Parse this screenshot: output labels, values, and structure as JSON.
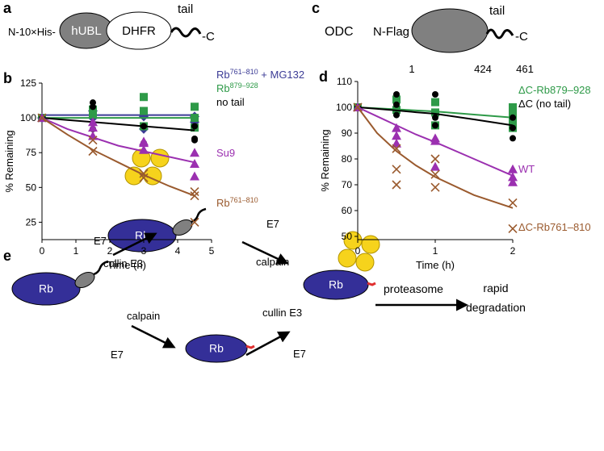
{
  "panel_a": {
    "letter": "a",
    "prefix": "N-10×His-",
    "domain1": "hUBL",
    "domain2": "DHFR",
    "tail": "tail",
    "suffix": "-C"
  },
  "panel_c": {
    "letter": "c",
    "protein": "ODC",
    "prefix": "N-Flag",
    "tail": "tail",
    "suffix": "-C",
    "positions": [
      "1",
      "424",
      "461"
    ]
  },
  "chart_data": [
    {
      "type": "scatter",
      "letter": "b",
      "xlabel": "Time (h)",
      "ylabel": "% Remaining",
      "xlim": [
        0,
        5
      ],
      "xticks": [
        0,
        1,
        2,
        3,
        4,
        5
      ],
      "ylim": [
        12.5,
        125
      ],
      "yticks": [
        25,
        50,
        75,
        100,
        125
      ],
      "fit_x": [
        0,
        0.75,
        1.5,
        2.25,
        3,
        3.75,
        4.5
      ],
      "series": [
        {
          "name": "Rb761–810 + MG132",
          "color": "#3c3c96",
          "marker": "diamond",
          "x": [
            0,
            1.5,
            1.5,
            3,
            3,
            4.5,
            4.5
          ],
          "values": [
            100,
            105,
            100,
            101,
            92,
            101,
            97
          ],
          "fit_values": [
            102,
            102,
            102,
            102,
            102,
            102,
            102
          ]
        },
        {
          "name": "Rb879–928",
          "color": "#2e9a48",
          "marker": "square",
          "x": [
            0,
            1.5,
            1.5,
            3,
            3,
            3,
            4.5,
            4.5,
            4.5
          ],
          "values": [
            100,
            106,
            103,
            115,
            105,
            94,
            108,
            100,
            93
          ],
          "fit_values": [
            100,
            100,
            100,
            100,
            100,
            100,
            100
          ]
        },
        {
          "name": "no tail",
          "color": "#000000",
          "marker": "circle",
          "x": [
            0,
            1.5,
            1.5,
            1.5,
            3,
            3,
            4.5,
            4.5,
            4.5
          ],
          "values": [
            100,
            111,
            108,
            92,
            94,
            82,
            85,
            84,
            94
          ],
          "fit_values": [
            100,
            98.5,
            97,
            95.5,
            94,
            92.5,
            91
          ]
        },
        {
          "name": "Su9",
          "color": "#9b30b0",
          "marker": "triangle",
          "x": [
            0,
            1.5,
            1.5,
            1.5,
            3,
            3,
            3,
            4.5,
            4.5,
            4.5
          ],
          "values": [
            100,
            97,
            93,
            87,
            83,
            77,
            82,
            75,
            67,
            58
          ],
          "fit_values": [
            100,
            92,
            86,
            80,
            76,
            72,
            68
          ]
        },
        {
          "name": "Rb761–810",
          "color": "#9a5a2e",
          "marker": "x",
          "x": [
            0,
            1.5,
            1.5,
            3,
            3,
            4.5,
            4.5,
            4.5
          ],
          "values": [
            100,
            84,
            76,
            60,
            57,
            47,
            44,
            25
          ],
          "fit_values": [
            100,
            88,
            77,
            68,
            59,
            51,
            44
          ]
        }
      ]
    },
    {
      "type": "scatter",
      "letter": "d",
      "xlabel": "Time (h)",
      "ylabel": "% Remaining",
      "xlim": [
        0,
        2
      ],
      "xticks": [
        0,
        1,
        2
      ],
      "ylim": [
        48.75,
        110
      ],
      "yticks": [
        50,
        60,
        70,
        80,
        90,
        100,
        110
      ],
      "fit_x": [
        0,
        0.25,
        0.5,
        0.75,
        1,
        1.5,
        2
      ],
      "series": [
        {
          "name": "ΔC-Rb879–928",
          "color": "#2e9a48",
          "marker": "square",
          "x": [
            0,
            0.5,
            0.5,
            1,
            1,
            1,
            2,
            2,
            2,
            2
          ],
          "values": [
            100,
            103,
            99,
            102,
            98,
            93,
            100,
            97,
            94,
            92
          ],
          "fit_values": [
            100,
            99.6,
            99.2,
            98.8,
            98.4,
            97.2,
            96
          ]
        },
        {
          "name": "ΔC (no tail)",
          "color": "#000000",
          "marker": "circle",
          "x": [
            0,
            0.5,
            0.5,
            0.5,
            1,
            1,
            1,
            2,
            2,
            2
          ],
          "values": [
            100,
            105,
            101,
            97,
            105,
            96,
            93,
            96,
            92,
            88
          ],
          "fit_values": [
            100,
            99.4,
            98.8,
            98.1,
            97.5,
            95.3,
            93
          ]
        },
        {
          "name": "WT",
          "color": "#9b30b0",
          "marker": "triangle",
          "x": [
            0,
            0.5,
            0.5,
            0.5,
            1,
            1,
            1,
            2,
            2,
            2
          ],
          "values": [
            100,
            92,
            89,
            86,
            88,
            87,
            77,
            76,
            73,
            71
          ],
          "fit_values": [
            100,
            96.5,
            93,
            89.5,
            86.5,
            80,
            73.5
          ]
        },
        {
          "name": "ΔC-Rb761–810",
          "color": "#9a5a2e",
          "marker": "x",
          "x": [
            0,
            0.5,
            0.5,
            0.5,
            1,
            1,
            1,
            2,
            2
          ],
          "values": [
            100,
            84,
            76,
            70,
            80,
            74,
            69,
            63,
            53
          ],
          "fit_values": [
            100,
            90,
            83,
            77.5,
            73,
            66,
            61
          ]
        }
      ]
    }
  ],
  "panel_e": {
    "letter": "e",
    "rb": [
      "Rb",
      "Rb",
      "Rb",
      "Rb"
    ],
    "steps": [
      "E7",
      "cullin E3",
      "calpain",
      "E7",
      "calpain",
      "cullin E3",
      "E7",
      "E7"
    ],
    "proteasome": "proteasome",
    "outcome": [
      "rapid",
      "degradation"
    ]
  }
}
